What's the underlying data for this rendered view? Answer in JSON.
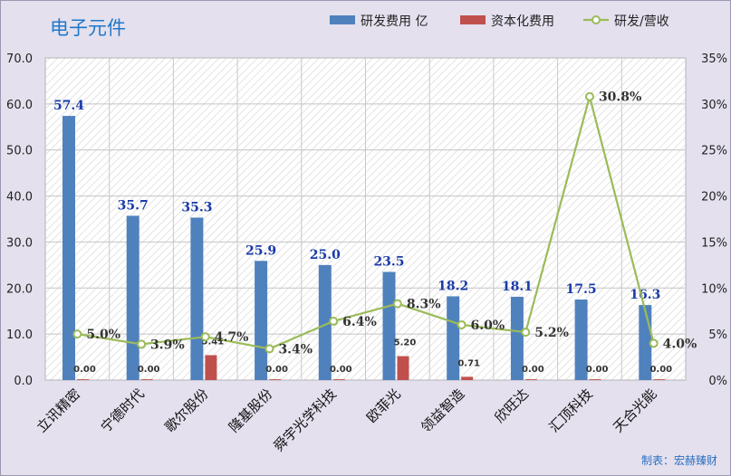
{
  "title": "电子元件",
  "credit": "制表：宏赫臻财",
  "colors": {
    "rd": "#4f81bd",
    "cap": "#c0504d",
    "ratio": "#9bbb59"
  },
  "chart_data": {
    "type": "bar",
    "categories": [
      "立讯精密",
      "宁德时代",
      "歌尔股份",
      "隆基股份",
      "舜宇光学科技",
      "欧菲光",
      "领益智造",
      "欣旺达",
      "汇顶科技",
      "天合光能"
    ],
    "series": [
      {
        "name": "研发费用 亿",
        "type": "bar",
        "axis": "left",
        "values": [
          57.4,
          35.7,
          35.3,
          25.9,
          25.0,
          23.5,
          18.2,
          18.1,
          17.5,
          16.3
        ],
        "labels": [
          "57.4",
          "35.7",
          "35.3",
          "25.9",
          "25.0",
          "23.5",
          "18.2",
          "18.1",
          "17.5",
          "16.3"
        ]
      },
      {
        "name": "资本化费用",
        "type": "bar",
        "axis": "left",
        "values": [
          0.0,
          0.0,
          5.41,
          0.0,
          0.0,
          5.2,
          0.71,
          0.0,
          0.0,
          0.0
        ],
        "labels": [
          "0.00",
          "0.00",
          "5.41",
          "0.00",
          "0.00",
          "5.20",
          "0.71",
          "0.00",
          "0.00",
          "0.00"
        ]
      },
      {
        "name": "研发/营收",
        "type": "line",
        "axis": "right",
        "values": [
          5.0,
          3.9,
          4.7,
          3.4,
          6.4,
          8.3,
          6.0,
          5.2,
          30.8,
          4.0
        ],
        "labels": [
          "5.0%",
          "3.9%",
          "4.7%",
          "3.4%",
          "6.4%",
          "8.3%",
          "6.0%",
          "5.2%",
          "30.8%",
          "4.0%"
        ]
      }
    ],
    "y_left": {
      "ylim": [
        0,
        70
      ],
      "ticks": [
        "0.0",
        "10.0",
        "20.0",
        "30.0",
        "40.0",
        "50.0",
        "60.0",
        "70.0"
      ]
    },
    "y_right": {
      "ylim": [
        0,
        35
      ],
      "ticks": [
        "0%",
        "5%",
        "10%",
        "15%",
        "20%",
        "25%",
        "30%",
        "35%"
      ]
    },
    "grid": true,
    "legend": "top-right"
  }
}
